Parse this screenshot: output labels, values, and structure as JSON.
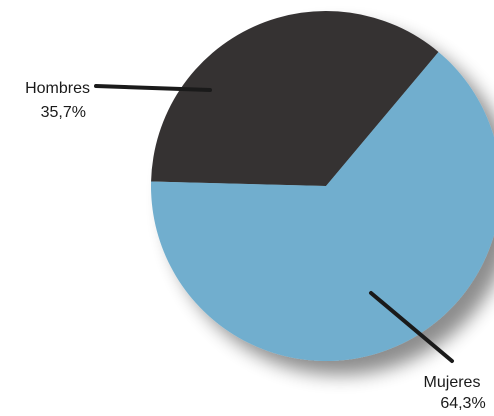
{
  "chart_data": {
    "type": "pie",
    "title": "",
    "slices": [
      {
        "label": "Hombres",
        "value_label": "35,7%",
        "value": 35.7,
        "color": "#353133"
      },
      {
        "label": "Mujeres",
        "value_label": "64,3%",
        "value": 64.3,
        "color": "#71aece"
      }
    ],
    "legend": "none",
    "label_style": "callout lines to slice interiors"
  }
}
